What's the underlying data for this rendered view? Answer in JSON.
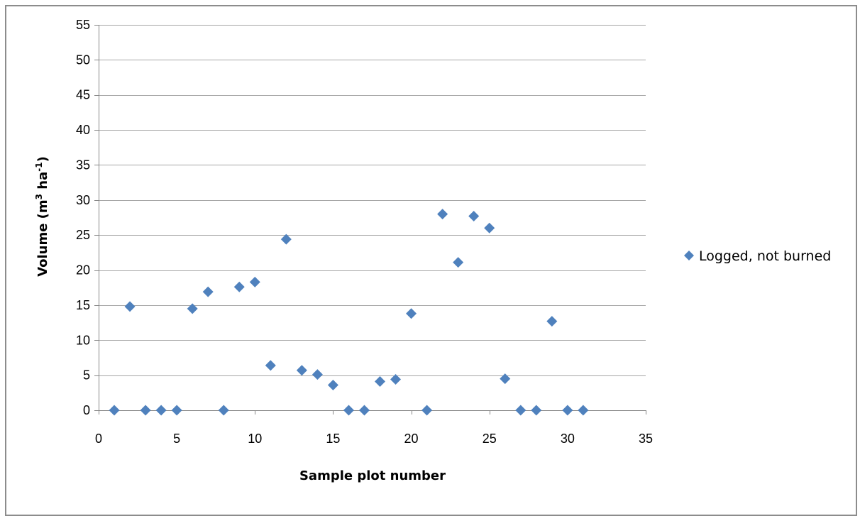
{
  "chart_data": {
    "type": "scatter",
    "title": "",
    "xlabel": "Sample plot number",
    "ylabel": {
      "prefix": "Volume (m",
      "sup1": "3",
      "middle": " ha",
      "sup2": "-1",
      "suffix": ")"
    },
    "xlim": [
      0,
      35
    ],
    "ylim": [
      0,
      55
    ],
    "x_ticks": [
      0,
      5,
      10,
      15,
      20,
      25,
      30,
      35
    ],
    "y_ticks": [
      0,
      5,
      10,
      15,
      20,
      25,
      30,
      35,
      40,
      45,
      50,
      55
    ],
    "grid": "horizontal",
    "legend_position": "right",
    "series": [
      {
        "name": "Logged, not burned",
        "color": "#4F81BD",
        "marker": "diamond",
        "points": [
          [
            1,
            0
          ],
          [
            2,
            14.8
          ],
          [
            3,
            0
          ],
          [
            4,
            0
          ],
          [
            5,
            0
          ],
          [
            6,
            14.5
          ],
          [
            7,
            16.9
          ],
          [
            8,
            0
          ],
          [
            9,
            17.6
          ],
          [
            10,
            18.3
          ],
          [
            11,
            6.4
          ],
          [
            12,
            24.4
          ],
          [
            13,
            5.7
          ],
          [
            14,
            5.1
          ],
          [
            15,
            3.6
          ],
          [
            16,
            0
          ],
          [
            17,
            0
          ],
          [
            18,
            4.1
          ],
          [
            19,
            4.4
          ],
          [
            20,
            13.8
          ],
          [
            21,
            0
          ],
          [
            22,
            28.0
          ],
          [
            23,
            21.1
          ],
          [
            24,
            27.7
          ],
          [
            25,
            26.0
          ],
          [
            26,
            4.5
          ],
          [
            27,
            0
          ],
          [
            28,
            0
          ],
          [
            29,
            12.7
          ],
          [
            30,
            0
          ],
          [
            31,
            0
          ]
        ]
      }
    ]
  }
}
